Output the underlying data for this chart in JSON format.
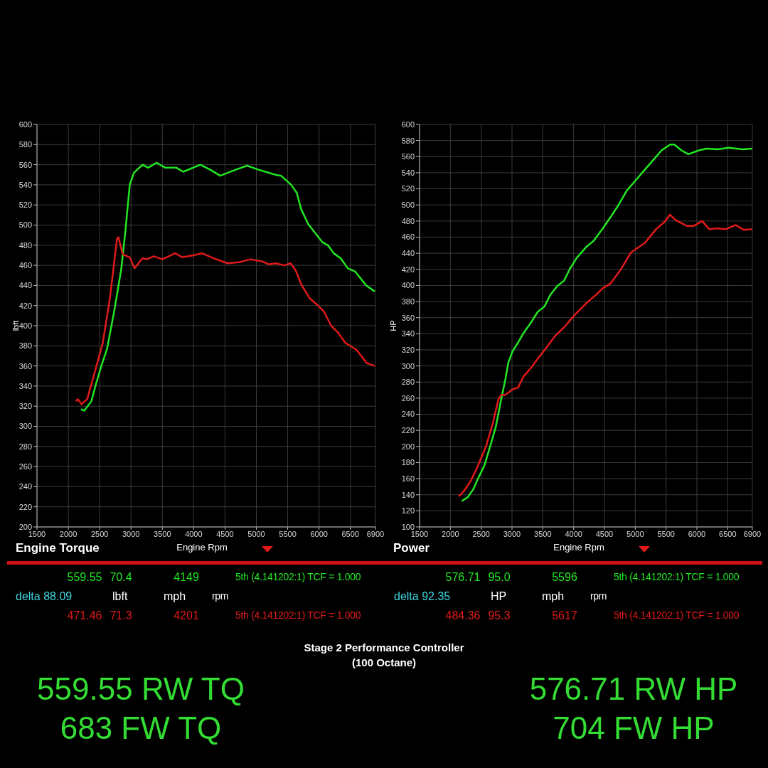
{
  "chart_data": [
    {
      "type": "line",
      "title": "Engine Torque",
      "xlabel": "Engine Rpm",
      "ylabel": "lbft",
      "xlim": [
        1500,
        6900
      ],
      "xticks": [
        1500,
        2000,
        2500,
        3000,
        3500,
        4000,
        4500,
        5000,
        5500,
        6000,
        6500,
        6900
      ],
      "ylim": [
        200,
        600
      ],
      "yticks": [
        200,
        220,
        240,
        260,
        280,
        300,
        320,
        340,
        360,
        380,
        400,
        420,
        440,
        460,
        480,
        500,
        520,
        540,
        560,
        580,
        600
      ],
      "grid": true,
      "series": [
        {
          "color": "#22e622",
          "x": [
            2201,
            2255,
            2368,
            2436,
            2527,
            2618,
            2731,
            2844,
            2912,
            2980,
            3047,
            3183,
            3273,
            3409,
            3545,
            3722,
            3834,
            4106,
            4264,
            4423,
            4671,
            4852,
            5033,
            5305,
            5395,
            5554,
            5645,
            5713,
            5826,
            5939,
            6052,
            6142,
            6233,
            6346,
            6459,
            6572,
            6753,
            6889
          ],
          "values": [
            317,
            315.5,
            325,
            341,
            360,
            377,
            414,
            456,
            495,
            540,
            552,
            560,
            557,
            562,
            557,
            557,
            553,
            560,
            555,
            549,
            555,
            559,
            555,
            550,
            549,
            540,
            532,
            516,
            501,
            492,
            483,
            480,
            472,
            467,
            457,
            454,
            440,
            434
          ]
        },
        {
          "color": "#e01a1a",
          "x": [
            2120,
            2151,
            2210,
            2301,
            2414,
            2550,
            2663,
            2776,
            2799,
            2867,
            2980,
            3057,
            3183,
            3251,
            3364,
            3500,
            3704,
            3817,
            3998,
            4134,
            4315,
            4541,
            4722,
            4903,
            5084,
            5197,
            5310,
            5446,
            5545,
            5627,
            5717,
            5853,
            5966,
            6079,
            6192,
            6305,
            6418,
            6599,
            6757,
            6889
          ],
          "values": [
            325,
            327,
            322,
            327,
            352,
            383,
            427,
            486,
            488,
            471,
            468,
            457,
            467,
            466,
            469,
            466,
            472,
            468,
            470,
            472,
            467,
            462,
            463,
            466,
            464,
            461,
            462,
            460,
            462,
            455,
            441,
            427,
            421,
            414,
            400,
            393,
            383,
            376,
            363,
            360
          ]
        }
      ],
      "annotations": [
        "559.55",
        "70.4",
        "4149",
        "5th (4.141202:1) TCF = 1.000",
        "delta 88.09",
        "lbft",
        "mph",
        "rpm",
        "471.46",
        "71.3",
        "4201",
        "5th (4.141202:1) TCF = 1.000",
        "559.55 RW TQ",
        "683 FW TQ",
        "Stage 2 Performance Controller",
        "(100 Octane)"
      ]
    },
    {
      "type": "line",
      "title": "Power",
      "xlabel": "Engine Rpm",
      "ylabel": "HP",
      "xlim": [
        1500,
        6900
      ],
      "xticks": [
        1500,
        2000,
        2500,
        3000,
        3500,
        4000,
        4500,
        5000,
        5500,
        6000,
        6500,
        6900
      ],
      "ylim": [
        100,
        600
      ],
      "yticks": [
        100,
        120,
        140,
        160,
        180,
        200,
        220,
        240,
        260,
        280,
        300,
        320,
        340,
        360,
        380,
        400,
        420,
        440,
        460,
        480,
        500,
        520,
        540,
        560,
        580,
        600
      ],
      "grid": true,
      "series": [
        {
          "color": "#22e622",
          "x": [
            2184,
            2283,
            2374,
            2442,
            2555,
            2645,
            2736,
            2826,
            2894,
            2940,
            3007,
            3098,
            3188,
            3301,
            3415,
            3528,
            3619,
            3732,
            3845,
            3935,
            4048,
            4207,
            4320,
            4456,
            4592,
            4728,
            4864,
            5000,
            5135,
            5271,
            5430,
            5565,
            5633,
            5746,
            5860,
            6040,
            6154,
            6335,
            6516,
            6742,
            6900
          ],
          "values": [
            132,
            137,
            147,
            159,
            177,
            200,
            224,
            259,
            284,
            304,
            318,
            329,
            341,
            353,
            367,
            374,
            388,
            399,
            406,
            420,
            434,
            448,
            455,
            469,
            484,
            500,
            518,
            530,
            542,
            554,
            568,
            575,
            575,
            568,
            563,
            568,
            570,
            569,
            571,
            569,
            570
          ]
        },
        {
          "color": "#e01a1a",
          "x": [
            2134,
            2215,
            2329,
            2442,
            2578,
            2690,
            2781,
            2826,
            2894,
            3007,
            3098,
            3188,
            3301,
            3437,
            3550,
            3709,
            3845,
            4026,
            4207,
            4343,
            4479,
            4592,
            4750,
            4931,
            5158,
            5339,
            5475,
            5565,
            5656,
            5837,
            5950,
            6086,
            6199,
            6335,
            6471,
            6629,
            6765,
            6900
          ],
          "values": [
            138,
            144,
            157,
            175,
            200,
            229,
            259,
            264,
            264,
            271,
            273,
            287,
            297,
            311,
            322,
            338,
            348,
            364,
            378,
            387,
            397,
            402,
            418,
            441,
            453,
            470,
            479,
            488,
            481,
            474,
            474,
            480,
            470,
            471,
            470,
            475,
            469,
            470
          ]
        }
      ],
      "annotations": [
        "576.71",
        "95.0",
        "5596",
        "5th (4.141202:1) TCF = 1.000",
        "delta 92.35",
        "HP",
        "mph",
        "rpm",
        "484.36",
        "95.3",
        "5617",
        "5th (4.141202:1) TCF = 1.000",
        "576.71 RW HP",
        "704 FW HP"
      ]
    }
  ]
}
